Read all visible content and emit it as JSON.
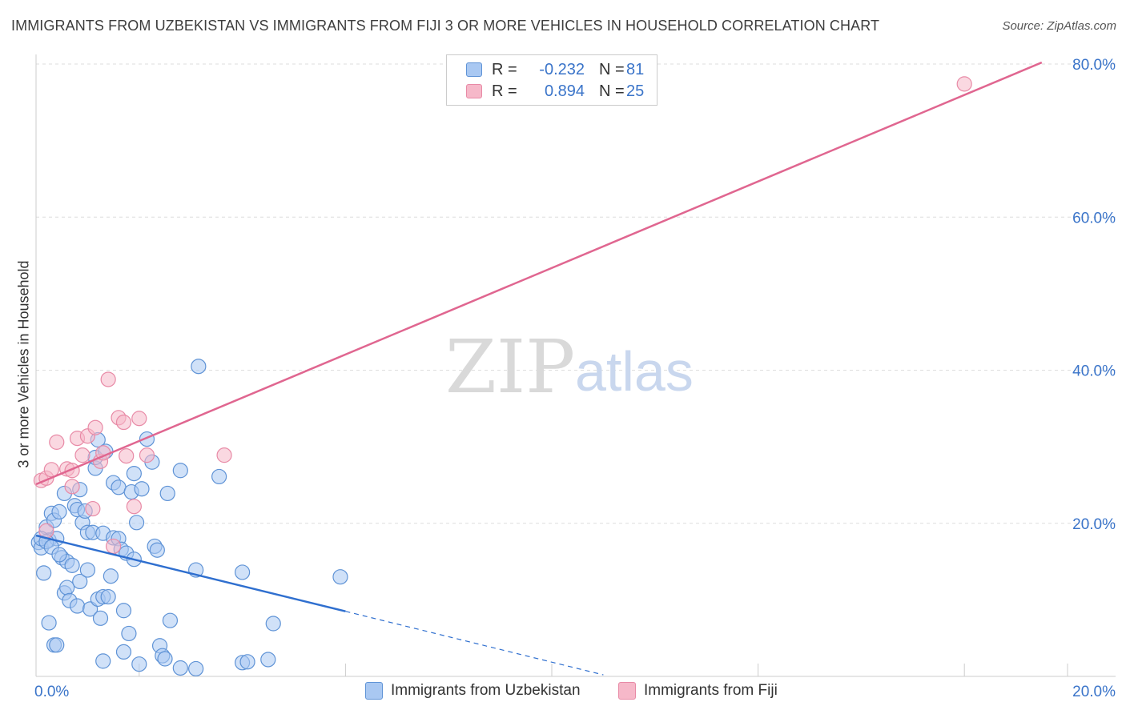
{
  "title": "IMMIGRANTS FROM UZBEKISTAN VS IMMIGRANTS FROM FIJI 3 OR MORE VEHICLES IN HOUSEHOLD CORRELATION CHART",
  "source": "Source: ZipAtlas.com",
  "watermark": {
    "zip": "ZIP",
    "atlas": "atlas"
  },
  "legend": {
    "uzbekistan": {
      "r_label": "R =",
      "r_value": "-0.232",
      "n_label": "N =",
      "n_value": "81"
    },
    "fiji": {
      "r_label": "R =",
      "r_value": "0.894",
      "n_label": "N =",
      "n_value": "25"
    }
  },
  "bottom_legend": {
    "uzbekistan": "Immigrants from Uzbekistan",
    "fiji": "Immigrants from Fiji"
  },
  "colors": {
    "uzbekistan_fill": "#a9c8f2",
    "uzbekistan_stroke": "#5f93d6",
    "uzbekistan_line": "#2f6fcf",
    "fiji_fill": "#f6b8c9",
    "fiji_stroke": "#e88aa6",
    "fiji_line": "#e06690",
    "tick_text": "#3a74c9",
    "grid": "#dedede"
  },
  "chart_data": {
    "type": "scatter",
    "title": "IMMIGRANTS FROM UZBEKISTAN VS IMMIGRANTS FROM FIJI 3 OR MORE VEHICLES IN HOUSEHOLD CORRELATION CHART",
    "xlabel": "",
    "ylabel": "3 or more Vehicles in Household",
    "xlim": [
      0,
      20
    ],
    "ylim": [
      0,
      80
    ],
    "x_tick_labels": [
      "0.0%",
      "20.0%"
    ],
    "y_tick_labels": [
      {
        "value": 20,
        "label": "20.0%"
      },
      {
        "value": 40,
        "label": "40.0%"
      },
      {
        "value": 60,
        "label": "60.0%"
      },
      {
        "value": 80,
        "label": "80.0%"
      }
    ],
    "series": [
      {
        "name": "Immigrants from Uzbekistan",
        "regression": {
          "x0": 0,
          "y0": 18.4,
          "x1": 6.0,
          "y1": 8.5,
          "dashed_to_x": 11.0,
          "dashed_to_y": 0.2
        },
        "points": [
          [
            0.05,
            17.5
          ],
          [
            0.1,
            16.8
          ],
          [
            0.15,
            13.5
          ],
          [
            0.2,
            19.5
          ],
          [
            0.25,
            17.8
          ],
          [
            0.3,
            21.3
          ],
          [
            0.35,
            20.4
          ],
          [
            0.4,
            18.0
          ],
          [
            0.45,
            21.5
          ],
          [
            0.5,
            15.5
          ],
          [
            0.55,
            23.9
          ],
          [
            0.55,
            10.9
          ],
          [
            0.6,
            11.6
          ],
          [
            0.6,
            15.0
          ],
          [
            0.65,
            9.9
          ],
          [
            0.7,
            14.5
          ],
          [
            0.75,
            22.3
          ],
          [
            0.8,
            9.2
          ],
          [
            0.8,
            21.8
          ],
          [
            0.85,
            12.4
          ],
          [
            0.85,
            24.4
          ],
          [
            0.9,
            20.1
          ],
          [
            0.95,
            21.6
          ],
          [
            1.0,
            18.8
          ],
          [
            1.0,
            13.9
          ],
          [
            1.05,
            8.8
          ],
          [
            1.1,
            18.8
          ],
          [
            1.15,
            27.2
          ],
          [
            1.15,
            28.6
          ],
          [
            1.2,
            10.1
          ],
          [
            1.2,
            30.9
          ],
          [
            1.25,
            7.6
          ],
          [
            1.3,
            18.7
          ],
          [
            1.3,
            10.4
          ],
          [
            1.35,
            29.4
          ],
          [
            1.4,
            10.4
          ],
          [
            1.45,
            13.1
          ],
          [
            1.5,
            25.3
          ],
          [
            1.5,
            18.1
          ],
          [
            1.6,
            18.0
          ],
          [
            1.6,
            24.7
          ],
          [
            1.65,
            16.6
          ],
          [
            1.7,
            8.6
          ],
          [
            1.75,
            16.1
          ],
          [
            1.8,
            5.6
          ],
          [
            1.85,
            24.1
          ],
          [
            1.9,
            15.3
          ],
          [
            1.9,
            26.5
          ],
          [
            1.95,
            20.1
          ],
          [
            2.05,
            24.5
          ],
          [
            2.15,
            31.0
          ],
          [
            2.25,
            28.0
          ],
          [
            2.3,
            17.0
          ],
          [
            2.35,
            16.5
          ],
          [
            2.4,
            4.0
          ],
          [
            2.45,
            2.7
          ],
          [
            2.5,
            2.3
          ],
          [
            2.55,
            23.9
          ],
          [
            2.6,
            7.3
          ],
          [
            2.8,
            1.1
          ],
          [
            2.8,
            26.9
          ],
          [
            3.1,
            1.0
          ],
          [
            3.1,
            13.9
          ],
          [
            3.15,
            40.5
          ],
          [
            3.55,
            26.1
          ],
          [
            4.0,
            1.8
          ],
          [
            4.0,
            13.6
          ],
          [
            4.1,
            1.9
          ],
          [
            4.5,
            2.2
          ],
          [
            4.6,
            6.9
          ],
          [
            5.9,
            13.0
          ],
          [
            0.25,
            7.0
          ],
          [
            0.35,
            4.1
          ],
          [
            0.4,
            4.1
          ],
          [
            1.3,
            2.0
          ],
          [
            1.7,
            3.2
          ],
          [
            2.0,
            1.6
          ],
          [
            0.1,
            18.0
          ],
          [
            0.2,
            17.6
          ],
          [
            0.3,
            16.9
          ],
          [
            0.45,
            15.9
          ]
        ]
      },
      {
        "name": "Immigrants from Fiji",
        "regression": {
          "x0": 0,
          "y0": 25.1,
          "x1": 19.5,
          "y1": 80.2
        },
        "points": [
          [
            0.1,
            25.6
          ],
          [
            0.2,
            25.9
          ],
          [
            0.2,
            19.0
          ],
          [
            0.3,
            27.0
          ],
          [
            0.4,
            30.6
          ],
          [
            0.6,
            27.1
          ],
          [
            0.7,
            24.8
          ],
          [
            0.7,
            26.9
          ],
          [
            0.8,
            31.1
          ],
          [
            0.9,
            28.9
          ],
          [
            1.0,
            31.4
          ],
          [
            1.1,
            21.9
          ],
          [
            1.15,
            32.5
          ],
          [
            1.25,
            28.1
          ],
          [
            1.3,
            29.2
          ],
          [
            1.4,
            38.8
          ],
          [
            1.6,
            33.8
          ],
          [
            1.7,
            33.2
          ],
          [
            1.75,
            28.8
          ],
          [
            1.9,
            22.2
          ],
          [
            2.0,
            33.7
          ],
          [
            2.15,
            28.9
          ],
          [
            3.65,
            28.9
          ],
          [
            18.0,
            77.4
          ],
          [
            1.5,
            17.0
          ]
        ]
      }
    ]
  }
}
